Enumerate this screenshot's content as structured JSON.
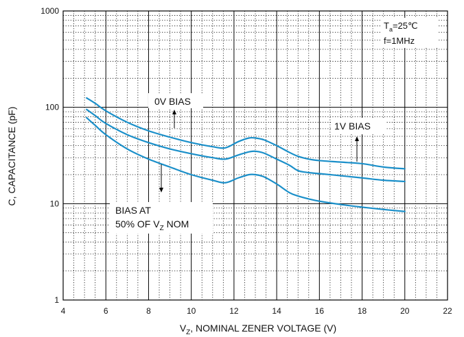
{
  "chart_data": {
    "type": "line",
    "title": "",
    "xlabel": {
      "prefix": "V",
      "sub": "Z",
      "suffix": ", NOMINAL ZENER VOLTAGE (V)"
    },
    "ylabel": "C, CAPACITANCE (pF)",
    "xlim": [
      4,
      22
    ],
    "ylim": [
      1,
      1000
    ],
    "yscale": "log",
    "grid": {
      "major": true,
      "minor_dotted": true
    },
    "x_ticks": [
      "4",
      "6",
      "8",
      "10",
      "12",
      "14",
      "16",
      "18",
      "20",
      "22"
    ],
    "y_ticks": [
      "1",
      "10",
      "100",
      "1000"
    ],
    "line_color": "#1a8fc9",
    "conditions": {
      "ta": {
        "prefix": "T",
        "sub": "a",
        "suffix": "=25℃"
      },
      "freq": "f=1MHz"
    },
    "annotations": {
      "bias_0v": "0V BIAS",
      "bias_1v": "1V BIAS",
      "bias_half_line1": "BIAS AT",
      "bias_half_line2": {
        "prefix": "50% OF V",
        "sub": "Z",
        "suffix": " NOM"
      }
    },
    "series": [
      {
        "x": [
          5.1,
          5.5,
          6,
          7,
          8,
          9,
          10,
          11,
          11.6,
          12.2,
          12.7,
          13,
          13.4,
          14,
          14.6,
          15,
          15.5,
          16,
          17,
          18,
          19,
          20
        ],
        "values": [
          125,
          110,
          92,
          70,
          57,
          49,
          43,
          39,
          38,
          44,
          48,
          48,
          46,
          40,
          34,
          31,
          29,
          28,
          27,
          26,
          24,
          23
        ]
      },
      {
        "x": [
          5.1,
          5.5,
          6,
          7,
          8,
          9,
          10,
          11,
          11.6,
          12.2,
          12.7,
          13,
          13.4,
          14,
          14.6,
          15,
          15.5,
          16,
          17,
          18,
          19,
          20
        ],
        "values": [
          95,
          82,
          68,
          52,
          43,
          37,
          33,
          30,
          29,
          32,
          34.5,
          35,
          33.5,
          29,
          25,
          22,
          21,
          20.5,
          19.5,
          18.5,
          17.5,
          17
        ]
      },
      {
        "x": [
          5.1,
          5.5,
          6,
          7,
          8,
          9,
          10,
          11,
          11.6,
          12.2,
          12.7,
          13,
          13.4,
          14,
          14.6,
          15,
          15.5,
          16,
          17,
          18,
          19,
          20
        ],
        "values": [
          78,
          65,
          52,
          37,
          29,
          24,
          20,
          17.5,
          16.5,
          18.5,
          20,
          20,
          19,
          16,
          13,
          12,
          11.2,
          10.6,
          9.8,
          9.2,
          8.7,
          8.3
        ]
      }
    ]
  }
}
